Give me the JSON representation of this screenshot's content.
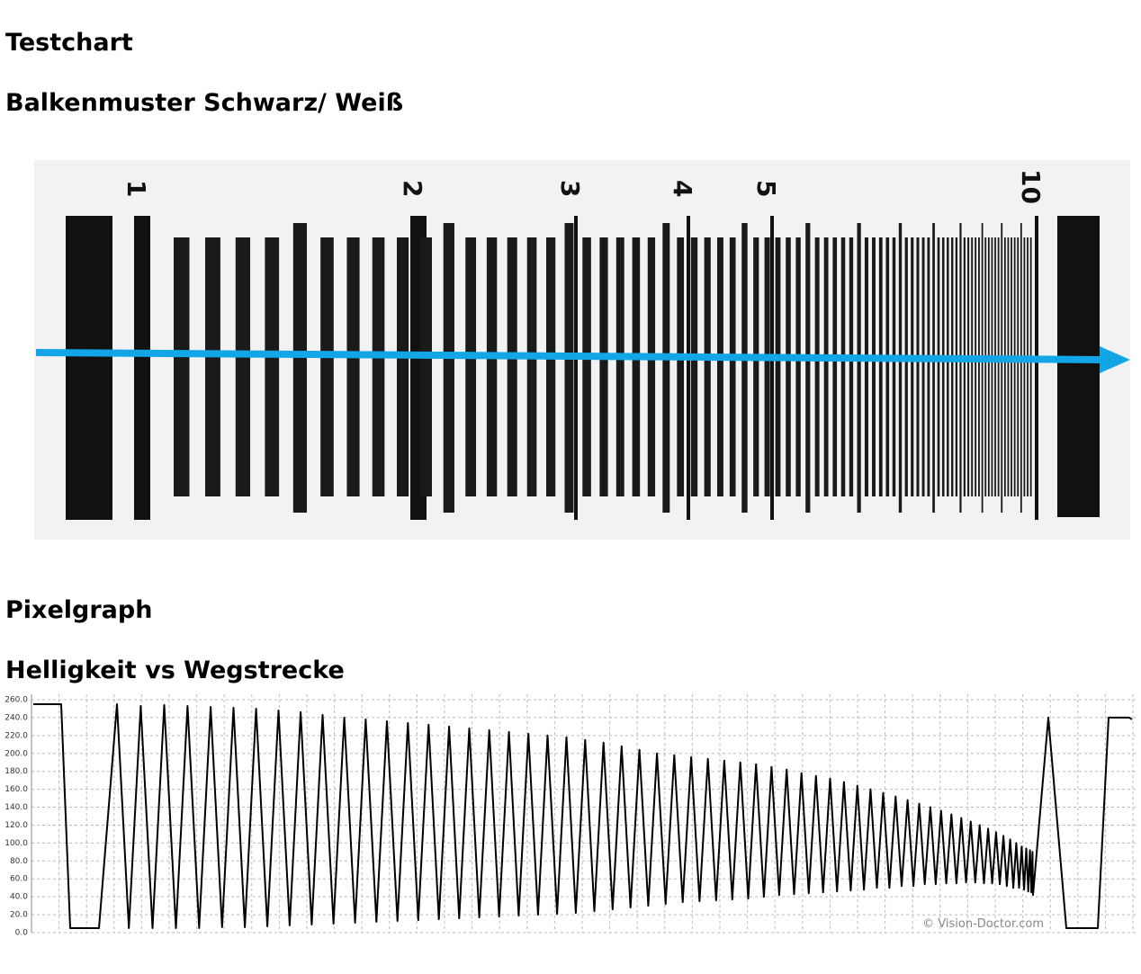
{
  "headings": {
    "section1": "Testchart",
    "section1_sub": "Balkenmuster Schwarz/ Weiß",
    "section2": "Pixelgraph",
    "section2_sub": "Helligkeit vs Wegstrecke"
  },
  "testchart": {
    "scale_labels": [
      "1",
      "2",
      "3",
      "4",
      "5",
      "10"
    ]
  },
  "chart_data": {
    "type": "line",
    "color": "#000000",
    "grid": true,
    "annotation": "© Vision-Doctor.com",
    "ylim": [
      0,
      260
    ],
    "yticks": [
      {
        "value": 0,
        "label": "0.0"
      },
      {
        "value": 20,
        "label": "20.0"
      },
      {
        "value": 40,
        "label": "40.0"
      },
      {
        "value": 60,
        "label": "60.0"
      },
      {
        "value": 80,
        "label": "80.0"
      },
      {
        "value": 100,
        "label": "100.0"
      },
      {
        "value": 120,
        "label": "120.0"
      },
      {
        "value": 140,
        "label": "140.0"
      },
      {
        "value": 160,
        "label": "160.0"
      },
      {
        "value": 180,
        "label": "180.0"
      },
      {
        "value": 200,
        "label": "200.0"
      },
      {
        "value": 220,
        "label": "220.0"
      },
      {
        "value": 240,
        "label": "240.0"
      },
      {
        "value": 260,
        "label": "260.0"
      }
    ],
    "values": [
      255,
      255,
      5,
      5,
      255,
      5,
      253,
      5,
      254,
      5,
      253,
      5,
      252,
      6,
      251,
      6,
      250,
      7,
      248,
      8,
      246,
      9,
      243,
      10,
      240,
      11,
      238,
      12,
      236,
      13,
      234,
      14,
      232,
      15,
      230,
      16,
      228,
      17,
      226,
      18,
      224,
      19,
      222,
      20,
      220,
      21,
      218,
      22,
      215,
      24,
      212,
      26,
      208,
      28,
      204,
      30,
      200,
      32,
      198,
      34,
      196,
      35,
      194,
      36,
      192,
      37,
      190,
      38,
      188,
      40,
      185,
      42,
      182,
      43,
      178,
      44,
      175,
      45,
      172,
      46,
      168,
      47,
      164,
      48,
      160,
      50,
      156,
      50,
      152,
      52,
      148,
      52,
      144,
      54,
      140,
      54,
      136,
      55,
      132,
      55,
      128,
      56,
      124,
      56,
      120,
      55,
      116,
      55,
      112,
      54,
      108,
      52,
      104,
      50,
      100,
      50,
      96,
      48,
      94,
      46,
      92,
      45,
      90,
      42,
      240,
      5,
      5,
      240,
      240,
      238
    ]
  }
}
